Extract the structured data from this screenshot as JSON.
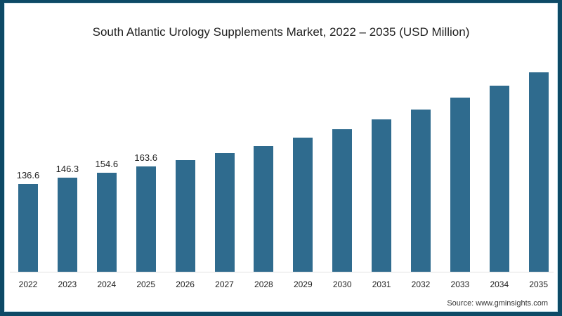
{
  "chart_data": {
    "type": "bar",
    "title": "South Atlantic Urology Supplements Market, 2022 – 2035 (USD Million)",
    "xlabel": "",
    "ylabel": "",
    "categories": [
      "2022",
      "2023",
      "2024",
      "2025",
      "2026",
      "2027",
      "2028",
      "2029",
      "2030",
      "2031",
      "2032",
      "2033",
      "2034",
      "2035"
    ],
    "values": [
      136.6,
      146.3,
      154.6,
      163.6,
      173.8,
      184.7,
      195.6,
      208.7,
      221.9,
      237.2,
      252.5,
      271.0,
      289.6,
      310.4
    ],
    "labeled_values": [
      "136.6",
      "146.3",
      "154.6",
      "163.6"
    ],
    "ylim": [
      0,
      320
    ],
    "grid": false,
    "legend": null,
    "bar_color": "#2f6b8e",
    "source": "Source: www.gminsights.com"
  },
  "frame": {
    "border_color": "#0d4a66",
    "background": "#ffffff"
  }
}
